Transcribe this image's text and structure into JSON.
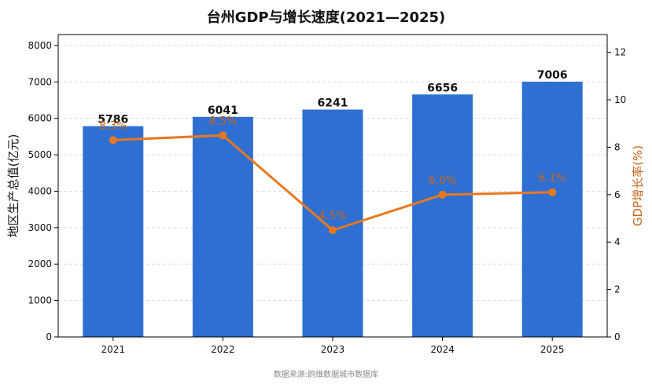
{
  "chart_data": {
    "type": "bar",
    "title": "台州GDP与增长速度(2021—2025)",
    "xlabel": "",
    "categories": [
      "2021",
      "2022",
      "2023",
      "2024",
      "2025"
    ],
    "series": [
      {
        "name": "地区生产总值(亿元)",
        "type": "bar",
        "axis": "left",
        "values": [
          5786,
          6041,
          6241,
          6656,
          7006
        ],
        "labels": [
          "5786",
          "6041",
          "6241",
          "6656",
          "7006"
        ],
        "color": "#2f6fd1"
      },
      {
        "name": "GDP增长率(%)",
        "type": "line",
        "axis": "right",
        "values": [
          8.3,
          8.5,
          4.5,
          6.0,
          6.1
        ],
        "labels": [
          "8.3%",
          "8.5%",
          "4.5%",
          "6.0%",
          "6.1%"
        ],
        "color": "#e8781f"
      }
    ],
    "y_left": {
      "label": "地区生产总值(亿元)",
      "ylim": [
        0,
        8300
      ],
      "ticks": [
        0,
        1000,
        2000,
        3000,
        4000,
        5000,
        6000,
        7000,
        8000
      ],
      "tick_labels": [
        "0",
        "1000",
        "2000",
        "3000",
        "4000",
        "5000",
        "6000",
        "7000",
        "8000"
      ]
    },
    "y_right": {
      "label": "GDP增长率(%)",
      "ylim": [
        0,
        12.75
      ],
      "ticks": [
        0,
        2,
        4,
        6,
        8,
        10,
        12
      ],
      "tick_labels": [
        "0",
        "2",
        "4",
        "6",
        "8",
        "10",
        "12"
      ],
      "color": "#c8661b"
    },
    "grid": "horizontal-dashed",
    "legend": "none"
  },
  "footer": {
    "source": "数据来源:鸥维数据城市数据库"
  }
}
